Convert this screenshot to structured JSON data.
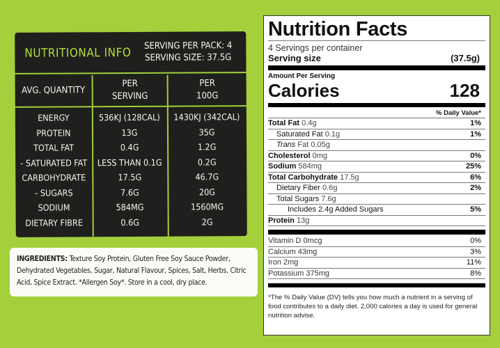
{
  "left_panel": {
    "title": "NUTRITIONAL INFO",
    "serving_per_pack": "SERVING PER PACK: 4",
    "serving_size": "SERVING SIZE: 37.5G",
    "col_headers": [
      "AVG. QUANTITY",
      "PER SERVING",
      "PER 100G"
    ],
    "rows": [
      [
        "ENERGY",
        "536KJ (128CAL)",
        "1430KJ (342CAL)"
      ],
      [
        "PROTEIN",
        "13G",
        "35G"
      ],
      [
        "TOTAL FAT",
        "0.4G",
        "1.2G"
      ],
      [
        "- SATURATED FAT",
        "LESS THAN 0.1G",
        "0.2G"
      ],
      [
        "CARBOHYDRATE",
        "17.5G",
        "46.7G"
      ],
      [
        "- SUGARS",
        "7.6G",
        "20G"
      ],
      [
        "SODIUM",
        "584MG",
        "1560MG"
      ],
      [
        "DIETARY FIBRE",
        "0.6G",
        "2G"
      ]
    ]
  },
  "ingredients": {
    "label": "INGREDIENTS:",
    "text": "Texture Soy Protein, Gluten Free Soy Sauce Powder, Dehydrated Vegetables, Sugar, Natural Flavour, Spices, Salt, Herbs, Citric Acid, Spice Extract. *Allergen Soy*. Store in a cool, dry place."
  },
  "nutrition_facts": {
    "title": "Nutrition Facts",
    "servings": "4 Servings per container",
    "serving_size_label": "Serving size",
    "serving_size_value": "(37.5g)",
    "amount_per_serving": "Amount Per Serving",
    "calories_label": "Calories",
    "calories_value": "128",
    "dv_header": "% Daily Value*",
    "nutrients": [
      {
        "name": "Total Fat",
        "amount": "0.4g",
        "dv": "1%",
        "bold": true,
        "indent": 0
      },
      {
        "name": "Saturated Fat",
        "amount": "0.1g",
        "dv": "1%",
        "bold": false,
        "indent": 1
      },
      {
        "name": "Trans",
        "amount": "Fat 0.05g",
        "dv": "",
        "bold": false,
        "indent": 1
      },
      {
        "name": "Cholesterol",
        "amount": "0mg",
        "dv": "0%",
        "bold": true,
        "indent": 0
      },
      {
        "name": "Sodium",
        "amount": "584mg",
        "dv": "25%",
        "bold": true,
        "indent": 0
      },
      {
        "name": "Total Carbohydrate",
        "amount": "17.5g",
        "dv": "6%",
        "bold": true,
        "indent": 0
      },
      {
        "name": "Dietary Fiber",
        "amount": "0.6g",
        "dv": "2%",
        "bold": false,
        "indent": 1
      },
      {
        "name": "Total Sugars",
        "amount": "7.6g",
        "dv": "",
        "bold": false,
        "indent": 1
      },
      {
        "name": "Includes 2.4g Added Sugars",
        "amount": "",
        "dv": "5%",
        "bold": false,
        "indent": 2
      },
      {
        "name": "Protein",
        "amount": "13g",
        "dv": "",
        "bold": true,
        "indent": 0
      }
    ],
    "vitamins": [
      {
        "name": "Vitamin D 0mcg",
        "dv": "0%"
      },
      {
        "name": "Calcium 43mg",
        "dv": "3%"
      },
      {
        "name": "Iron 2mg",
        "dv": "11%"
      },
      {
        "name": "Potassium 375mg",
        "dv": "8%"
      }
    ],
    "footnote": "*The % Daily Value (DV) tells you how much a nutrient in a serving of food contributes to a daily diet. 2,000 calories a day is used for general nutrition advise."
  },
  "colors": {
    "background": "#a5cf3b",
    "panel": "#1f1f1d",
    "accent": "#b5dc3a"
  }
}
